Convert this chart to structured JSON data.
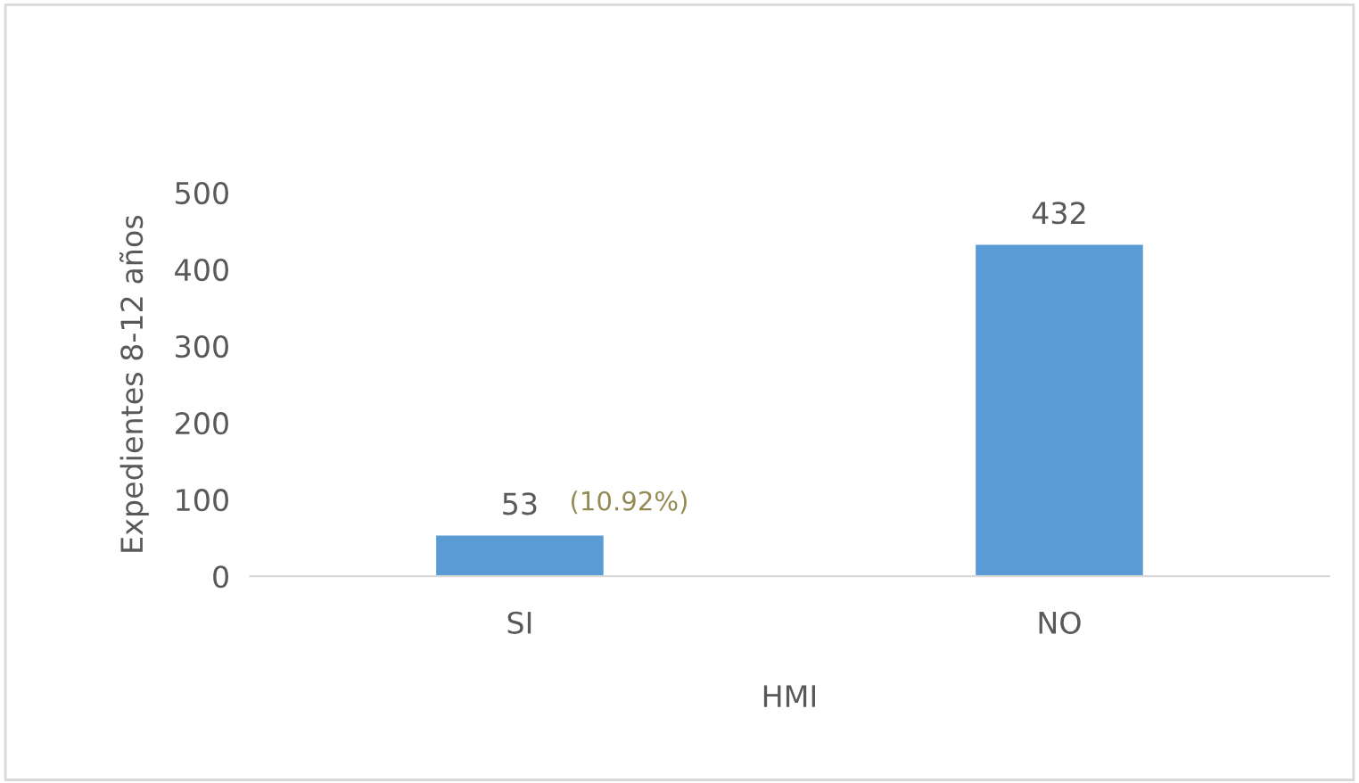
{
  "chart_data": {
    "type": "bar",
    "xlabel": "HMI",
    "ylabel": "Expedientes 8-12 años",
    "categories": [
      "SI",
      "NO"
    ],
    "values": [
      53,
      432
    ],
    "color": "#5b9bd5",
    "ylim": [
      0,
      500
    ],
    "yticks": [
      0,
      100,
      200,
      300,
      400,
      500
    ],
    "grid": false,
    "data_labels": true,
    "annotations": [
      {
        "text": "(10.92%)",
        "x": "SI",
        "y": 53
      }
    ]
  }
}
